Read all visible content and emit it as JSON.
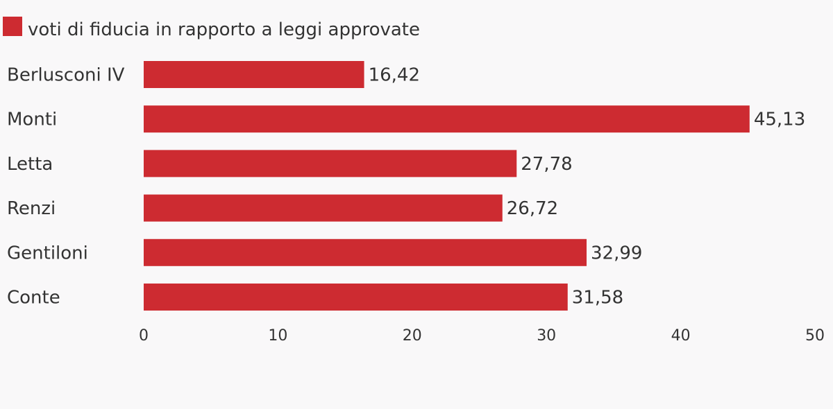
{
  "chart_data": {
    "type": "bar",
    "orientation": "horizontal",
    "categories": [
      "Berlusconi IV",
      "Monti",
      "Letta",
      "Renzi",
      "Gentiloni",
      "Conte"
    ],
    "series": [
      {
        "name": "voti di fiducia in rapporto a leggi approvate",
        "values": [
          16.42,
          45.13,
          27.78,
          26.72,
          32.99,
          31.58
        ],
        "value_labels": [
          "16,42",
          "45,13",
          "27,78",
          "26,72",
          "32,99",
          "31,58"
        ]
      }
    ],
    "xlim": [
      0,
      50
    ],
    "xticks": [
      "0",
      "10",
      "20",
      "30",
      "40",
      "50"
    ],
    "grid": false,
    "legend_position": "top-left",
    "colors": {
      "bar": "#cd2b31",
      "text": "#333333",
      "background": "#f9f8f9"
    }
  }
}
